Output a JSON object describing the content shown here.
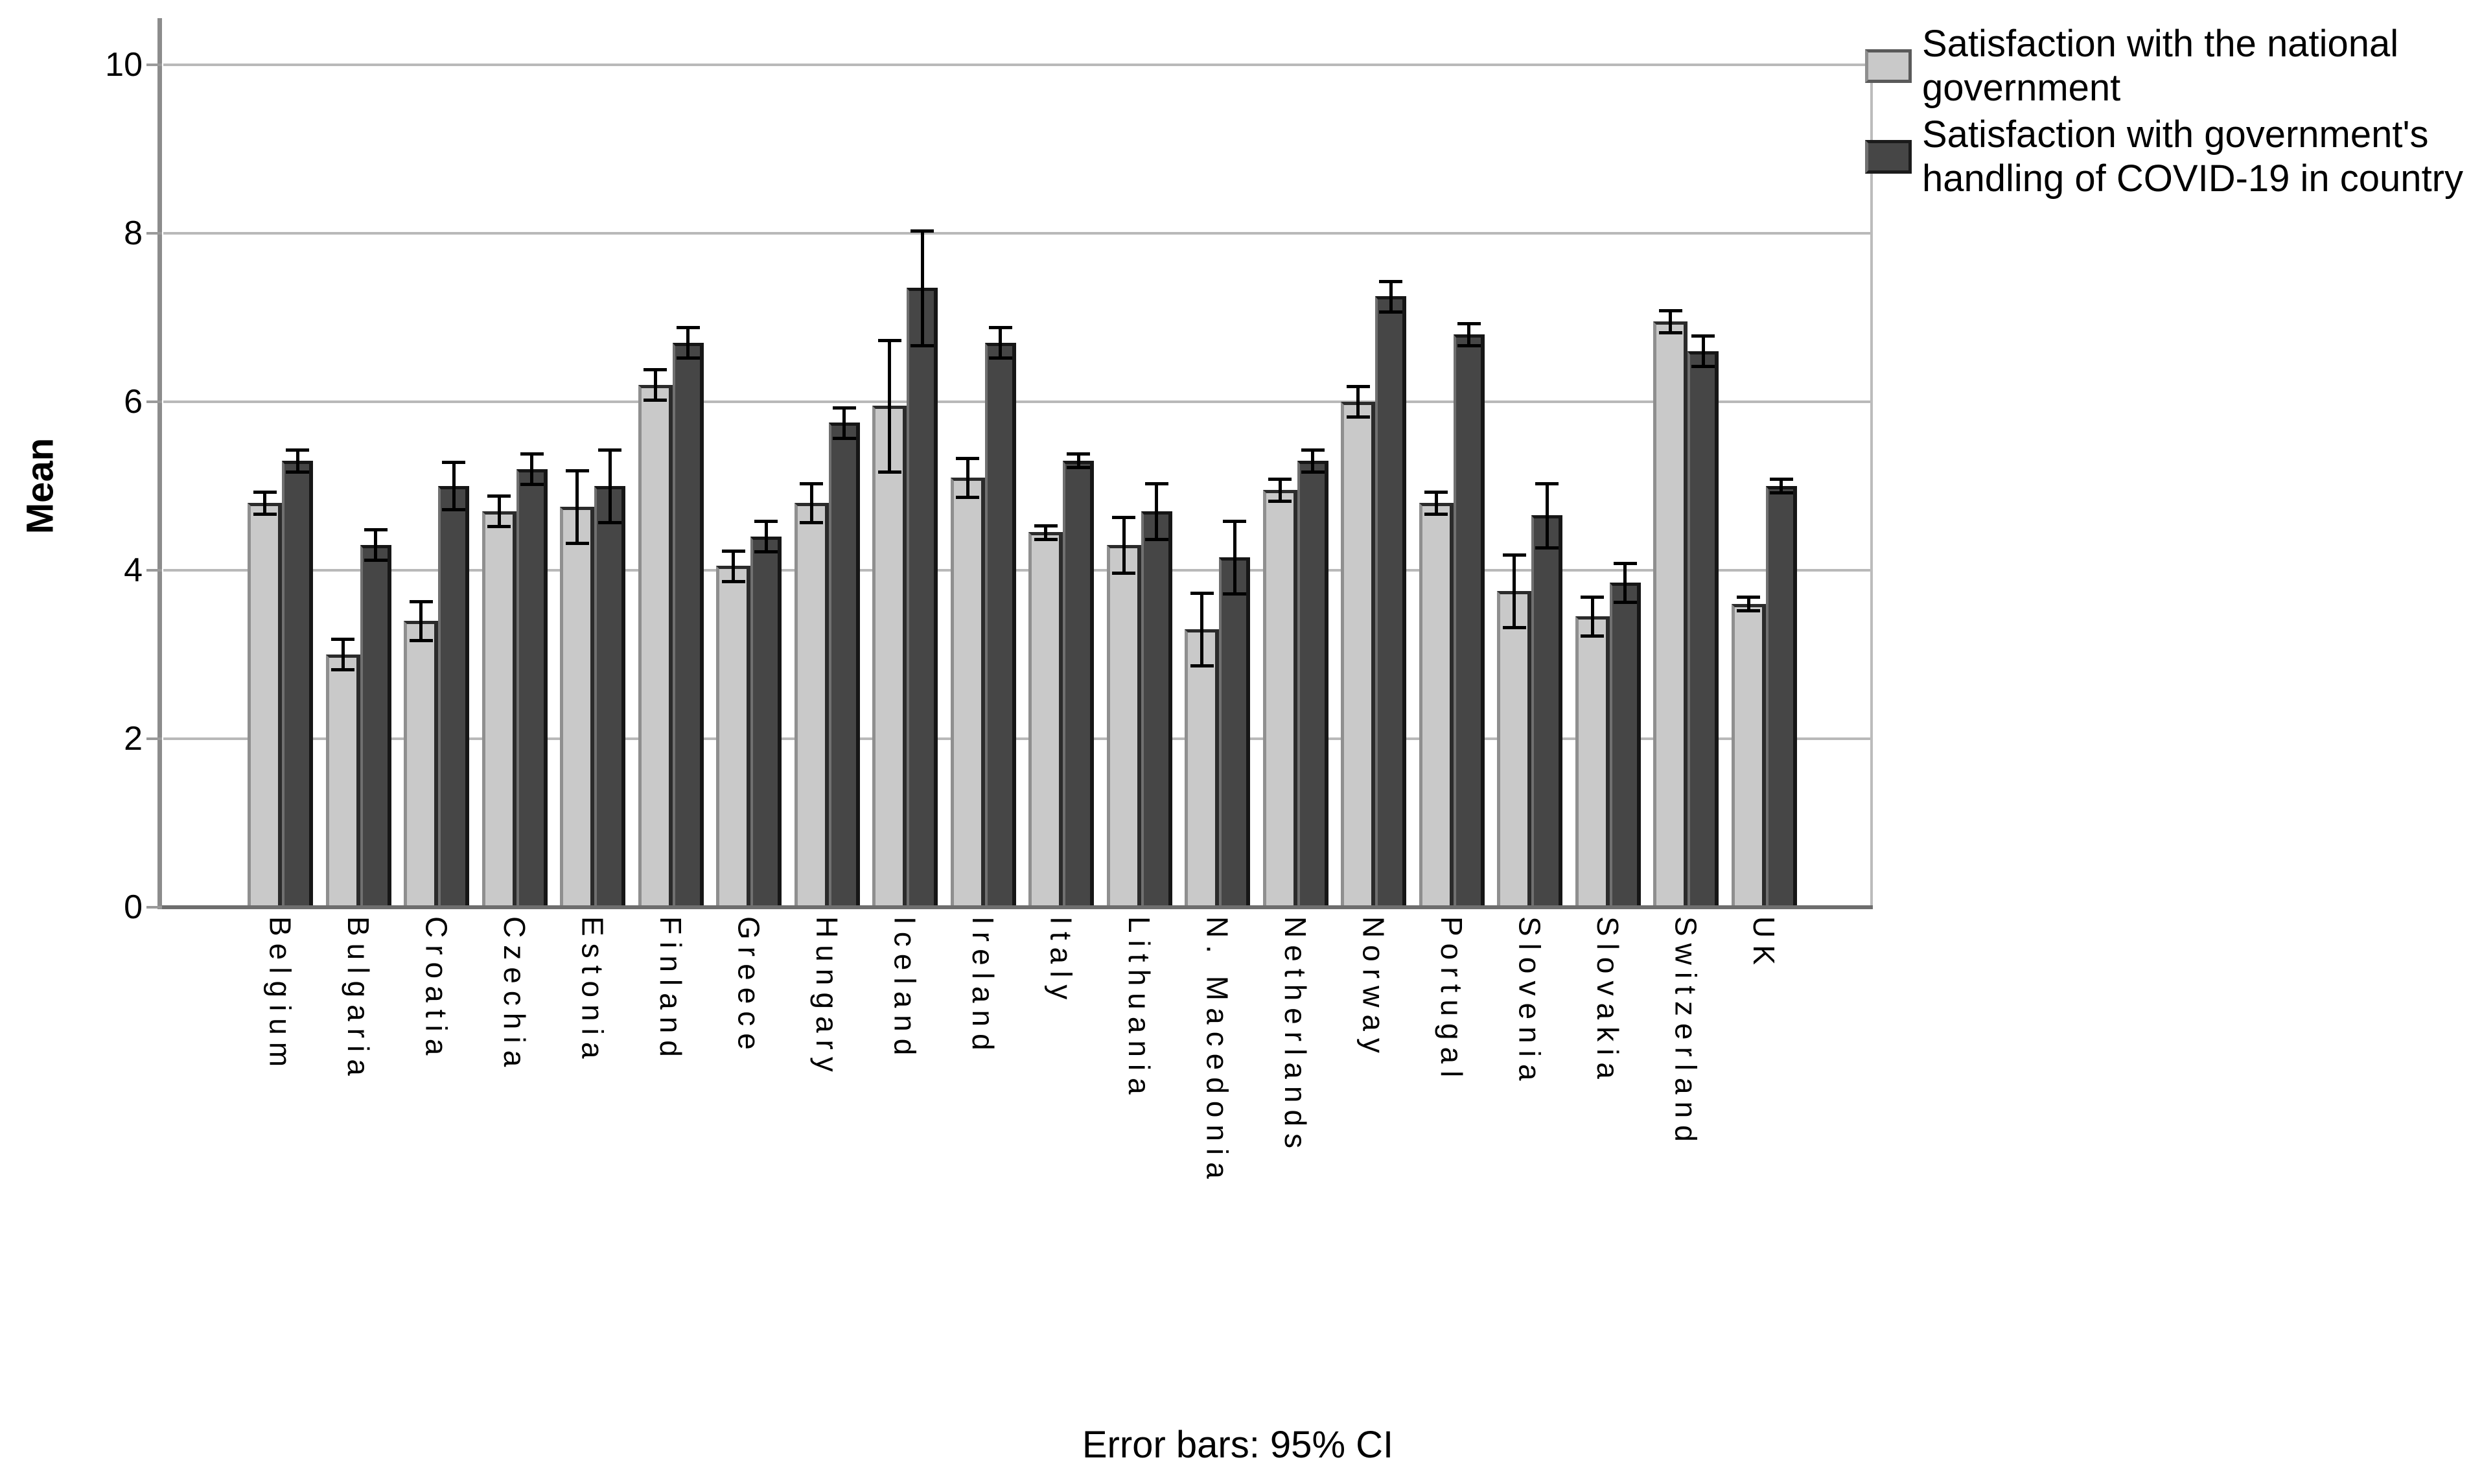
{
  "figure": {
    "ylabel": "Mean",
    "caption": "Error bars: 95% CI"
  },
  "chart_data": {
    "type": "bar",
    "title": "",
    "xlabel": "",
    "ylabel": "Mean",
    "ylim": [
      0,
      10
    ],
    "yticks": [
      0,
      2,
      4,
      6,
      8,
      10
    ],
    "grid": true,
    "legend_position": "top-right",
    "error_bars_note": "Error bars: 95% CI",
    "categories": [
      "Belgium",
      "Bulgaria",
      "Croatia",
      "Czechia",
      "Estonia",
      "Finland",
      "Greece",
      "Hungary",
      "Iceland",
      "Ireland",
      "Italy",
      "Lithuania",
      "N. Macedonia",
      "Netherlands",
      "Norway",
      "Portugal",
      "Slovenia",
      "Slovakia",
      "Switzerland",
      "UK"
    ],
    "series": [
      {
        "name": "Satisfaction with the national government",
        "legend_lines": [
          "Satisfaction with the national",
          "government"
        ],
        "color": "#c9c9c9",
        "values": [
          4.8,
          3.0,
          3.4,
          4.7,
          4.75,
          6.2,
          4.05,
          4.8,
          5.95,
          5.1,
          4.45,
          4.3,
          3.3,
          4.95,
          6.0,
          4.8,
          3.75,
          3.45,
          6.95,
          3.6
        ],
        "ci95": [
          0.15,
          0.2,
          0.25,
          0.2,
          0.45,
          0.2,
          0.2,
          0.25,
          0.8,
          0.25,
          0.1,
          0.35,
          0.45,
          0.15,
          0.2,
          0.15,
          0.45,
          0.25,
          0.15,
          0.1
        ]
      },
      {
        "name": "Satisfaction with government's handling of COVID-19 in country",
        "legend_lines": [
          "Satisfaction with government's",
          "handling of COVID-19 in country"
        ],
        "color": "#464646",
        "values": [
          5.3,
          4.3,
          5.0,
          5.2,
          5.0,
          6.7,
          4.4,
          5.75,
          7.35,
          6.7,
          5.3,
          4.7,
          4.15,
          5.3,
          7.25,
          6.8,
          4.65,
          3.85,
          6.6,
          5.0
        ],
        "ci95": [
          0.15,
          0.2,
          0.3,
          0.2,
          0.45,
          0.2,
          0.2,
          0.2,
          0.7,
          0.2,
          0.1,
          0.35,
          0.45,
          0.15,
          0.2,
          0.15,
          0.4,
          0.25,
          0.2,
          0.1
        ]
      }
    ]
  }
}
